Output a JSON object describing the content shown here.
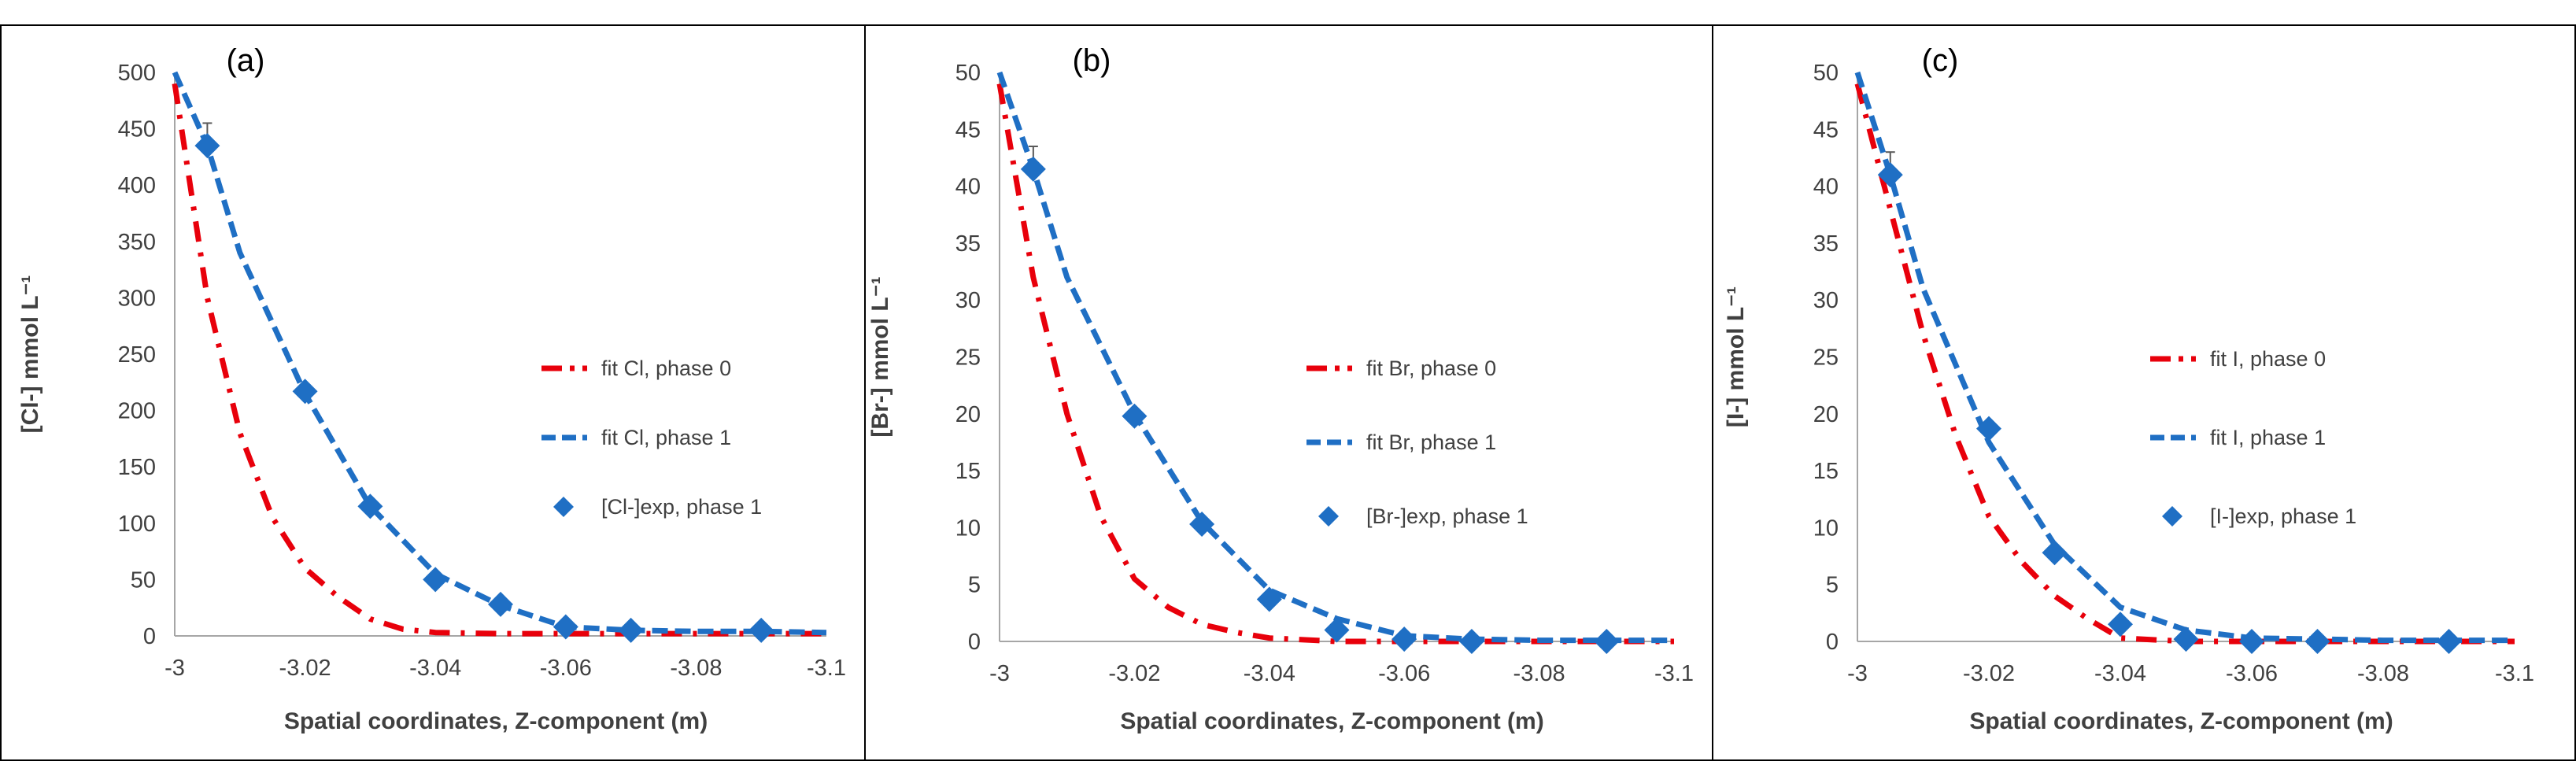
{
  "colors": {
    "phase0": "#E8000B",
    "phase1": "#1F6FC4",
    "axis": "#A6A6A6",
    "text": "#404040",
    "frame": "#000000"
  },
  "chart_data": [
    {
      "type": "line",
      "panel_label": "(a)",
      "xlabel": "Spatial coordinates, Z-component (m)",
      "ylabel": "[Cl-] mmol L⁻¹",
      "xlim": [
        -3.0,
        -3.1
      ],
      "ylim": [
        0,
        500
      ],
      "x_ticks": [
        -3,
        -3.02,
        -3.04,
        -3.06,
        -3.08,
        -3.1
      ],
      "x_tick_labels": [
        "-3",
        "-3.02",
        "-3.04",
        "-3.06",
        "-3.08",
        "-3.1"
      ],
      "y_ticks": [
        0,
        50,
        100,
        150,
        200,
        250,
        300,
        350,
        400,
        450,
        500
      ],
      "y_tick_labels": [
        "0",
        "50",
        "100",
        "150",
        "200",
        "250",
        "300",
        "350",
        "400",
        "450",
        "500"
      ],
      "legend_position": "center-right",
      "series": [
        {
          "name": "fit Cl, phase 0",
          "style": "dashdot",
          "x": [
            -3.0,
            -3.005,
            -3.01,
            -3.015,
            -3.02,
            -3.025,
            -3.03,
            -3.035,
            -3.04,
            -3.05,
            -3.06,
            -3.07,
            -3.08,
            -3.09,
            -3.1
          ],
          "y": [
            490,
            300,
            180,
            105,
            60,
            35,
            15,
            6,
            3,
            2,
            2,
            2,
            2,
            2,
            2
          ]
        },
        {
          "name": "fit  Cl, phase 1",
          "style": "dashed",
          "x": [
            -3.0,
            -3.005,
            -3.01,
            -3.02,
            -3.03,
            -3.04,
            -3.05,
            -3.06,
            -3.07,
            -3.08,
            -3.09,
            -3.1
          ],
          "y": [
            500,
            435,
            340,
            215,
            115,
            55,
            27,
            8,
            5,
            4,
            4,
            3
          ]
        },
        {
          "name": "[Cl-]exp, phase 1",
          "style": "marker",
          "x": [
            -3.005,
            -3.02,
            -3.03,
            -3.04,
            -3.05,
            -3.06,
            -3.07,
            -3.09
          ],
          "y": [
            435,
            217,
            115,
            50,
            28,
            8,
            5,
            5
          ],
          "error": [
            20,
            0,
            0,
            0,
            0,
            0,
            0,
            0
          ]
        }
      ]
    },
    {
      "type": "line",
      "panel_label": "(b)",
      "xlabel": "Spatial coordinates, Z-component (m)",
      "ylabel": "[Br-] mmol L⁻¹",
      "xlim": [
        -3.0,
        -3.1
      ],
      "ylim": [
        0,
        50
      ],
      "x_ticks": [
        -3,
        -3.02,
        -3.04,
        -3.06,
        -3.08,
        -3.1
      ],
      "x_tick_labels": [
        "-3",
        "-3.02",
        "-3.04",
        "-3.06",
        "-3.08",
        "-3.1"
      ],
      "y_ticks": [
        0,
        5,
        10,
        15,
        20,
        25,
        30,
        35,
        40,
        45,
        50
      ],
      "y_tick_labels": [
        "0",
        "5",
        "10",
        "15",
        "20",
        "25",
        "30",
        "35",
        "40",
        "45",
        "50"
      ],
      "legend_position": "center-right",
      "series": [
        {
          "name": "fit Br, phase 0",
          "style": "dashdot",
          "x": [
            -3.0,
            -3.005,
            -3.01,
            -3.015,
            -3.02,
            -3.025,
            -3.03,
            -3.035,
            -3.04,
            -3.05,
            -3.06,
            -3.1
          ],
          "y": [
            49,
            32,
            20,
            11,
            5.5,
            3,
            1.5,
            0.8,
            0.3,
            0,
            0,
            0
          ]
        },
        {
          "name": "fit  Br, phase 1",
          "style": "dashed",
          "x": [
            -3.0,
            -3.005,
            -3.01,
            -3.02,
            -3.03,
            -3.04,
            -3.05,
            -3.06,
            -3.07,
            -3.08,
            -3.09,
            -3.1
          ],
          "y": [
            50,
            41.5,
            32,
            20,
            10.5,
            4.5,
            2,
            0.5,
            0.2,
            0.1,
            0.1,
            0.1
          ]
        },
        {
          "name": "[Br-]exp, phase 1",
          "style": "marker",
          "x": [
            -3.005,
            -3.02,
            -3.03,
            -3.04,
            -3.05,
            -3.06,
            -3.07,
            -3.09
          ],
          "y": [
            41.5,
            19.8,
            10.3,
            3.7,
            1,
            0.2,
            0,
            0
          ],
          "error": [
            2,
            0,
            0,
            0,
            0,
            0,
            0,
            0
          ]
        }
      ]
    },
    {
      "type": "line",
      "panel_label": "(c)",
      "xlabel": "Spatial coordinates, Z-component (m)",
      "ylabel": "[I-] mmol L⁻¹",
      "xlim": [
        -3.0,
        -3.1
      ],
      "ylim": [
        0,
        50
      ],
      "x_ticks": [
        -3,
        -3.02,
        -3.04,
        -3.06,
        -3.08,
        -3.1
      ],
      "x_tick_labels": [
        "-3",
        "-3.02",
        "-3.04",
        "-3.06",
        "-3.08",
        "-3.1"
      ],
      "y_ticks": [
        0,
        5,
        10,
        15,
        20,
        25,
        30,
        35,
        40,
        45,
        50
      ],
      "y_tick_labels": [
        "0",
        "5",
        "10",
        "15",
        "20",
        "25",
        "30",
        "35",
        "40",
        "45",
        "50"
      ],
      "legend_position": "center-right",
      "series": [
        {
          "name": "fit I, phase 0",
          "style": "dashdot",
          "x": [
            -3.0,
            -3.005,
            -3.01,
            -3.015,
            -3.02,
            -3.025,
            -3.03,
            -3.035,
            -3.04,
            -3.05,
            -3.1
          ],
          "y": [
            49,
            38,
            27,
            18,
            11,
            7,
            4,
            2,
            0.3,
            0,
            0
          ]
        },
        {
          "name": "fit  I, phase 1",
          "style": "dashed",
          "x": [
            -3.0,
            -3.005,
            -3.01,
            -3.02,
            -3.03,
            -3.04,
            -3.05,
            -3.06,
            -3.07,
            -3.08,
            -3.09,
            -3.1
          ],
          "y": [
            50,
            41,
            31,
            17.5,
            8.5,
            3,
            1,
            0.3,
            0.2,
            0.1,
            0.1,
            0.1
          ]
        },
        {
          "name": "[I-]exp, phase 1",
          "style": "marker",
          "x": [
            -3.005,
            -3.02,
            -3.03,
            -3.04,
            -3.05,
            -3.06,
            -3.07,
            -3.09
          ],
          "y": [
            41,
            18.7,
            7.8,
            1.5,
            0.2,
            0,
            0,
            0
          ],
          "error": [
            2,
            0,
            0,
            0,
            0,
            0,
            0,
            0
          ]
        }
      ]
    }
  ]
}
